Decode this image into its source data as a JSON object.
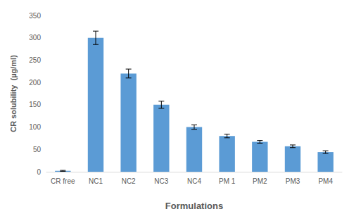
{
  "chart_data": {
    "type": "bar",
    "x_label": "Formulations",
    "y_label": "CR solubility  (µg/ml)",
    "categories": [
      "CR free",
      "NC1",
      "NC2",
      "NC3",
      "NC4",
      "PM 1",
      "PM2",
      "PM3",
      "PM4"
    ],
    "values": [
      2,
      300,
      220,
      150,
      100,
      80,
      67,
      57,
      44
    ],
    "errors": [
      1,
      15,
      10,
      8,
      5,
      4,
      3,
      3,
      3
    ],
    "color": "#5b9bd5",
    "ylim": [
      0,
      350
    ],
    "yticks": [
      0,
      50,
      100,
      150,
      200,
      250,
      300,
      350
    ],
    "grid": false
  }
}
